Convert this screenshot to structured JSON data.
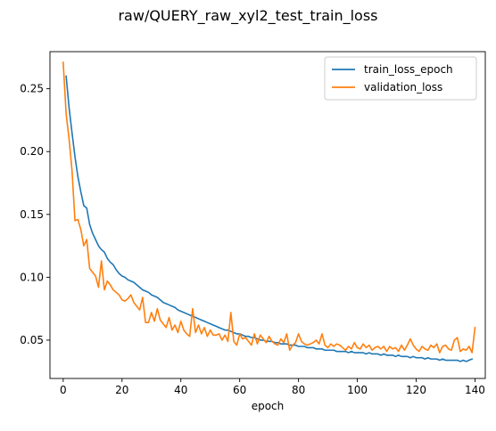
{
  "chart_data": {
    "type": "line",
    "title": "raw/QUERY_raw_xyl2_test_train_loss",
    "xlabel": "epoch",
    "ylabel": "",
    "xlim": [
      -4.5,
      143.5
    ],
    "ylim": [
      0.0195,
      0.2795
    ],
    "xticks": [
      0,
      20,
      40,
      60,
      80,
      100,
      120,
      140
    ],
    "xtick_labels": [
      "0",
      "20",
      "40",
      "60",
      "80",
      "100",
      "120",
      "140"
    ],
    "yticks": [
      0.05,
      0.1,
      0.15,
      0.2,
      0.25
    ],
    "ytick_labels": [
      "0.05",
      "0.10",
      "0.15",
      "0.20",
      "0.25"
    ],
    "grid": false,
    "legend": {
      "location": "upper right"
    },
    "series": [
      {
        "name": "train_loss_epoch",
        "color": "#1f77b4",
        "x_start": 1,
        "x_step": 1,
        "values": [
          0.26,
          0.235,
          0.215,
          0.196,
          0.18,
          0.168,
          0.157,
          0.155,
          0.142,
          0.135,
          0.13,
          0.125,
          0.122,
          0.12,
          0.115,
          0.112,
          0.11,
          0.106,
          0.103,
          0.101,
          0.1,
          0.098,
          0.097,
          0.096,
          0.094,
          0.092,
          0.09,
          0.089,
          0.088,
          0.086,
          0.085,
          0.084,
          0.082,
          0.08,
          0.079,
          0.078,
          0.077,
          0.076,
          0.074,
          0.073,
          0.072,
          0.071,
          0.07,
          0.069,
          0.068,
          0.067,
          0.066,
          0.065,
          0.064,
          0.063,
          0.062,
          0.061,
          0.06,
          0.059,
          0.058,
          0.058,
          0.057,
          0.056,
          0.055,
          0.055,
          0.054,
          0.053,
          0.053,
          0.052,
          0.052,
          0.051,
          0.05,
          0.05,
          0.049,
          0.049,
          0.049,
          0.048,
          0.048,
          0.047,
          0.047,
          0.047,
          0.046,
          0.046,
          0.046,
          0.045,
          0.045,
          0.045,
          0.044,
          0.044,
          0.044,
          0.043,
          0.043,
          0.043,
          0.042,
          0.042,
          0.042,
          0.042,
          0.041,
          0.041,
          0.041,
          0.041,
          0.04,
          0.041,
          0.04,
          0.04,
          0.04,
          0.04,
          0.039,
          0.04,
          0.039,
          0.039,
          0.039,
          0.038,
          0.039,
          0.038,
          0.038,
          0.038,
          0.037,
          0.038,
          0.037,
          0.037,
          0.037,
          0.036,
          0.037,
          0.036,
          0.036,
          0.036,
          0.035,
          0.036,
          0.035,
          0.035,
          0.035,
          0.034,
          0.035,
          0.034,
          0.034,
          0.034,
          0.034,
          0.034,
          0.033,
          0.034,
          0.033,
          0.034,
          0.035
        ]
      },
      {
        "name": "validation_loss",
        "color": "#ff7f0e",
        "x_start": 0,
        "x_step": 1,
        "values": [
          0.271,
          0.23,
          0.21,
          0.185,
          0.145,
          0.146,
          0.138,
          0.125,
          0.13,
          0.107,
          0.104,
          0.101,
          0.092,
          0.113,
          0.09,
          0.097,
          0.094,
          0.09,
          0.088,
          0.086,
          0.082,
          0.081,
          0.083,
          0.086,
          0.08,
          0.077,
          0.074,
          0.084,
          0.064,
          0.064,
          0.072,
          0.065,
          0.075,
          0.066,
          0.063,
          0.06,
          0.068,
          0.058,
          0.062,
          0.056,
          0.065,
          0.058,
          0.055,
          0.053,
          0.075,
          0.056,
          0.062,
          0.055,
          0.06,
          0.053,
          0.058,
          0.054,
          0.054,
          0.055,
          0.05,
          0.054,
          0.049,
          0.072,
          0.049,
          0.046,
          0.055,
          0.051,
          0.052,
          0.049,
          0.046,
          0.055,
          0.047,
          0.054,
          0.051,
          0.048,
          0.053,
          0.049,
          0.047,
          0.046,
          0.051,
          0.048,
          0.055,
          0.042,
          0.046,
          0.048,
          0.055,
          0.049,
          0.047,
          0.046,
          0.047,
          0.048,
          0.05,
          0.047,
          0.055,
          0.046,
          0.044,
          0.047,
          0.045,
          0.047,
          0.046,
          0.044,
          0.042,
          0.045,
          0.043,
          0.048,
          0.044,
          0.043,
          0.047,
          0.044,
          0.046,
          0.042,
          0.044,
          0.045,
          0.043,
          0.045,
          0.041,
          0.045,
          0.043,
          0.044,
          0.041,
          0.046,
          0.042,
          0.046,
          0.051,
          0.046,
          0.043,
          0.041,
          0.045,
          0.043,
          0.042,
          0.046,
          0.044,
          0.047,
          0.04,
          0.045,
          0.046,
          0.043,
          0.042,
          0.05,
          0.052,
          0.041,
          0.043,
          0.042,
          0.045,
          0.04,
          0.06
        ]
      }
    ]
  }
}
